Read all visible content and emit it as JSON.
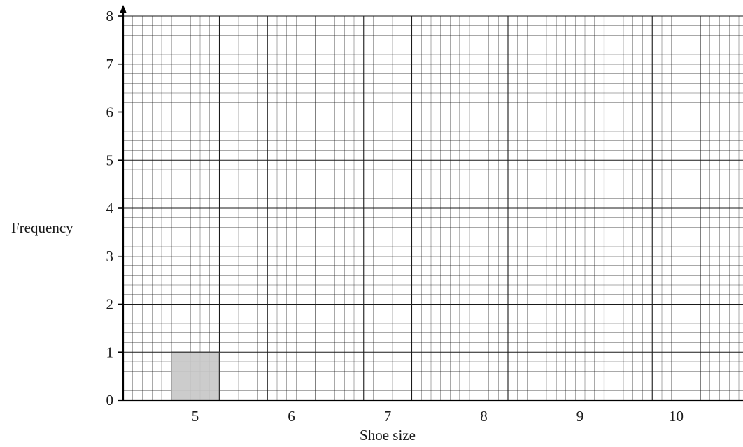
{
  "chart_data": {
    "type": "bar",
    "title": "",
    "xlabel": "Shoe size",
    "ylabel": "Frequency",
    "categories": [
      "5",
      "6",
      "7",
      "8",
      "9",
      "10"
    ],
    "values": [
      1,
      null,
      null,
      null,
      null,
      null
    ],
    "ylim": [
      0,
      8
    ],
    "y_ticks": [
      "0",
      "1",
      "2",
      "3",
      "4",
      "5",
      "6",
      "7",
      "8"
    ],
    "grid": true,
    "bar_color": "#c8c8c8",
    "grid_color": "#1a1a1a"
  }
}
